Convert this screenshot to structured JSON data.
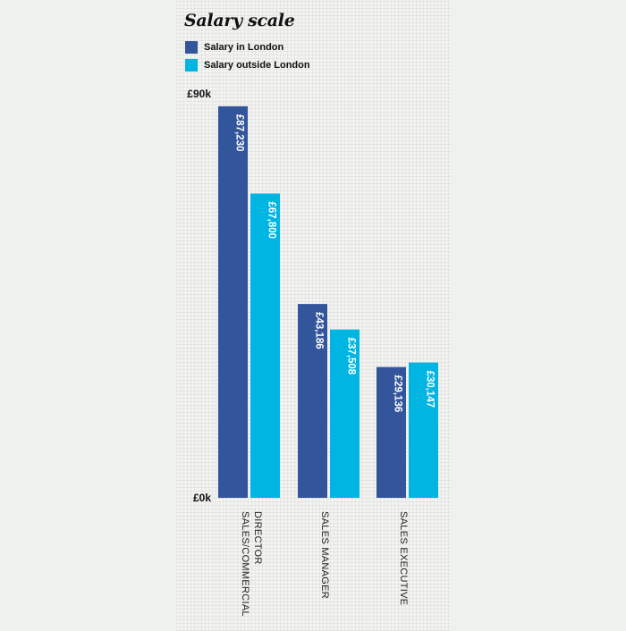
{
  "chart_data": {
    "type": "bar",
    "title": "Salary scale",
    "categories": [
      [
        "SALES/COMMERCIAL",
        "DIRECTOR"
      ],
      [
        "SALES MANAGER"
      ],
      [
        "SALES EXECUTIVE"
      ]
    ],
    "series": [
      {
        "name": "Salary in London",
        "color": "#33559b",
        "values": [
          87230,
          43186,
          29136
        ],
        "labels": [
          "£87,230",
          "£43,186",
          "£29,136"
        ]
      },
      {
        "name": "Salary outside London",
        "color": "#00b5e2",
        "values": [
          67800,
          37508,
          30147
        ],
        "labels": [
          "£67,800",
          "£37,508",
          "£30,147"
        ]
      }
    ],
    "ylim": [
      0,
      90000
    ],
    "yticks": [
      "£0k",
      "£90k"
    ],
    "xlabel": "",
    "ylabel": "",
    "legend": "top-left"
  }
}
